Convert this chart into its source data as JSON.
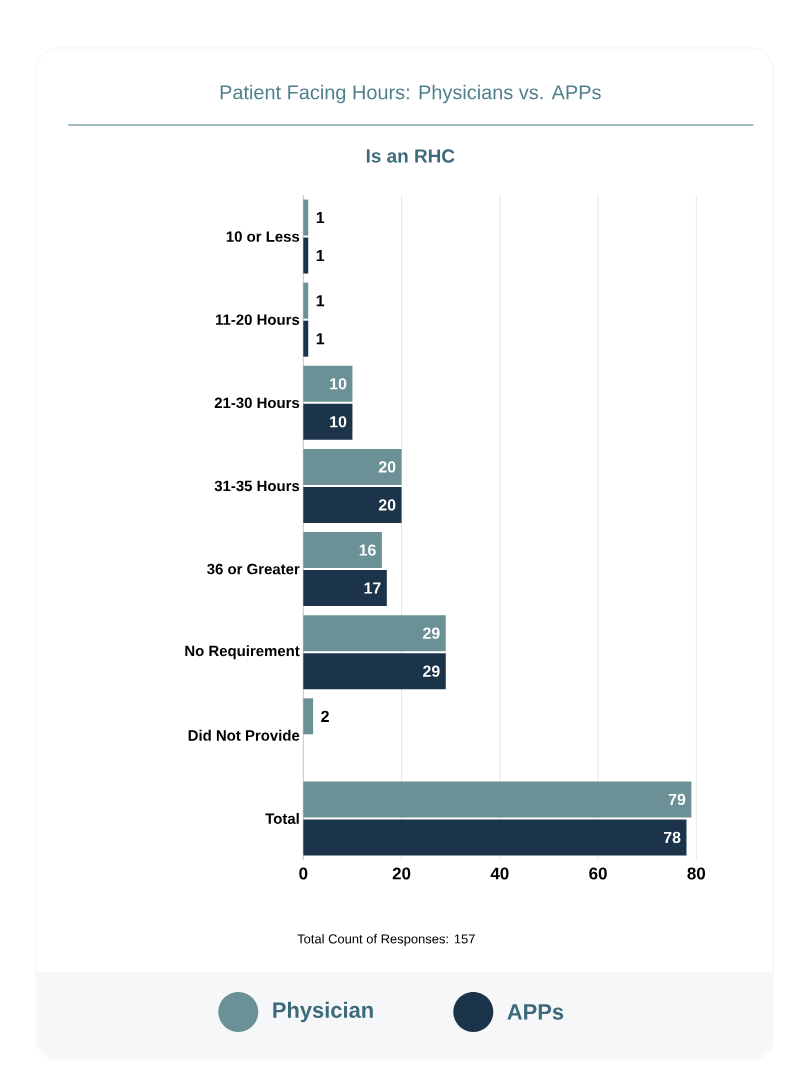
{
  "chart_data": {
    "type": "bar",
    "orientation": "horizontal",
    "title": "Patient Facing Hours: Physicians vs. APPs",
    "subtitle": "Is an RHC",
    "categories": [
      "10 or Less",
      "11-20 Hours",
      "21-30 Hours",
      "31-35 Hours",
      "36 or Greater",
      "No Requirement",
      "Did Not Provide",
      "Total"
    ],
    "series": [
      {
        "name": "Physician",
        "color": "#6b9196",
        "values": [
          1,
          1,
          10,
          20,
          16,
          29,
          2,
          79
        ],
        "value_labels": [
          "1",
          "1",
          "10",
          "20",
          "16",
          "29",
          "2",
          "79"
        ]
      },
      {
        "name": "APPs",
        "color": "#1b3449",
        "values": [
          1,
          1,
          10,
          20,
          17,
          29,
          0,
          78
        ],
        "value_labels": [
          "1",
          "1",
          "10",
          "20",
          "17",
          "29",
          null,
          "78"
        ]
      }
    ],
    "xlim": [
      0,
      80
    ],
    "xticks": [
      0,
      20,
      40,
      60,
      80
    ],
    "grid": "x",
    "legend": "bottom",
    "annotations": [
      "Total Count of Responses: 157"
    ]
  }
}
